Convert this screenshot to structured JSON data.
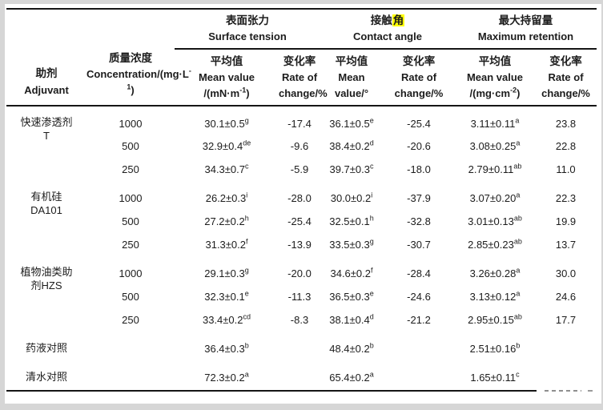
{
  "colors": {
    "highlight": "#ffff00",
    "rule": "#151515",
    "page_background": "#ffffff",
    "frame_background": "#d6d6d6"
  },
  "table": {
    "columns": {
      "adjuvant": {
        "zh": "助剂",
        "en": "Adjuvant"
      },
      "concentration": {
        "zh": "质量浓度",
        "en": "Concentration/(mg·L^{-1})"
      }
    },
    "group_headers": [
      {
        "zh": "表面张力",
        "en": "Surface tension"
      },
      {
        "zh_pre": "接触",
        "zh_hl": "角",
        "en": "Contact angle"
      },
      {
        "zh": "最大持留量",
        "en": "Maximum retention"
      }
    ],
    "sub_headers": [
      {
        "zh": "平均值",
        "en": "Mean value",
        "unit": "/(mN·m^{-1})"
      },
      {
        "zh": "变化率",
        "en": "Rate of",
        "unit": "change/%"
      },
      {
        "zh": "平均值",
        "en": "Mean",
        "unit": "value/°"
      },
      {
        "zh": "变化率",
        "en": "Rate of",
        "unit": "change/%"
      },
      {
        "zh": "平均值",
        "en": "Mean value",
        "unit": "/(mg·cm^{-2})"
      },
      {
        "zh": "变化率",
        "en": "Rate of",
        "unit": "change/%"
      }
    ],
    "rows": [
      {
        "adjuvant": "快速渗透剂\nT",
        "span": 3,
        "group_start": true,
        "conc": "1000",
        "st_mean": "30.1±0.5^{g}",
        "st_rate": "-17.4",
        "ca_mean": "36.1±0.5^{e}",
        "ca_rate": "-25.4",
        "mr_mean": "3.11±0.11^{a}",
        "mr_rate": "23.8"
      },
      {
        "conc": "500",
        "st_mean": "32.9±0.4^{de}",
        "st_rate": "-9.6",
        "ca_mean": "38.4±0.2^{d}",
        "ca_rate": "-20.6",
        "mr_mean": "3.08±0.25^{a}",
        "mr_rate": "22.8"
      },
      {
        "conc": "250",
        "st_mean": "34.3±0.7^{c}",
        "st_rate": "-5.9",
        "ca_mean": "39.7±0.3^{c}",
        "ca_rate": "-18.0",
        "mr_mean": "2.79±0.11^{ab}",
        "mr_rate": "11.0"
      },
      {
        "adjuvant": "有机硅\nDA101",
        "span": 3,
        "group_start": true,
        "conc": "1000",
        "st_mean": "26.2±0.3^{i}",
        "st_rate": "-28.0",
        "ca_mean": "30.0±0.2^{i}",
        "ca_rate": "-37.9",
        "mr_mean": "3.07±0.20^{a}",
        "mr_rate": "22.3"
      },
      {
        "conc": "500",
        "st_mean": "27.2±0.2^{h}",
        "st_rate": "-25.4",
        "ca_mean": "32.5±0.1^{h}",
        "ca_rate": "-32.8",
        "mr_mean": "3.01±0.13^{ab}",
        "mr_rate": "19.9"
      },
      {
        "conc": "250",
        "st_mean": "31.3±0.2^{f}",
        "st_rate": "-13.9",
        "ca_mean": "33.5±0.3^{g}",
        "ca_rate": "-30.7",
        "mr_mean": "2.85±0.23^{ab}",
        "mr_rate": "13.7"
      },
      {
        "adjuvant": "植物油类助\n剂HZS",
        "span": 3,
        "group_start": true,
        "conc": "1000",
        "st_mean": "29.1±0.3^{g}",
        "st_rate": "-20.0",
        "ca_mean": "34.6±0.2^{f}",
        "ca_rate": "-28.4",
        "mr_mean": "3.26±0.28^{a}",
        "mr_rate": "30.0"
      },
      {
        "conc": "500",
        "st_mean": "32.3±0.1^{e}",
        "st_rate": "-11.3",
        "ca_mean": "36.5±0.3^{e}",
        "ca_rate": "-24.6",
        "mr_mean": "3.13±0.12^{a}",
        "mr_rate": "24.6"
      },
      {
        "conc": "250",
        "st_mean": "33.4±0.2^{cd}",
        "st_rate": "-8.3",
        "ca_mean": "38.1±0.4^{d}",
        "ca_rate": "-21.2",
        "mr_mean": "2.95±0.15^{ab}",
        "mr_rate": "17.7"
      },
      {
        "adjuvant": "药液对照",
        "span": 1,
        "group_start": true,
        "conc": "",
        "st_mean": "36.4±0.3^{b}",
        "st_rate": "",
        "ca_mean": "48.4±0.2^{b}",
        "ca_rate": "",
        "mr_mean": "2.51±0.16^{b}",
        "mr_rate": ""
      },
      {
        "adjuvant": "清水对照",
        "span": 1,
        "group_start": true,
        "conc": "",
        "st_mean": "72.3±0.2^{a}",
        "st_rate": "",
        "ca_mean": "65.4±0.2^{a}",
        "ca_rate": "",
        "mr_mean": "1.65±0.11^{c}",
        "mr_rate": ""
      }
    ]
  }
}
